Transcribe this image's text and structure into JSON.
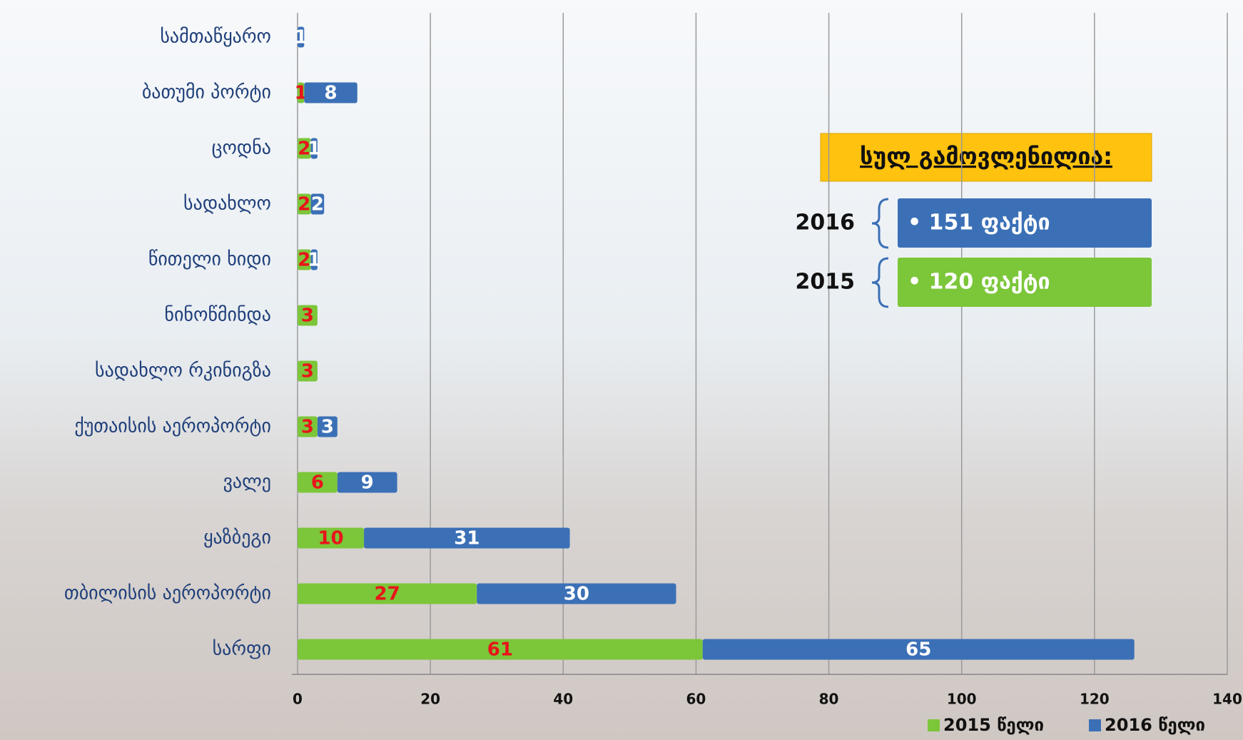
{
  "chart_data": {
    "type": "bar",
    "orientation": "horizontal",
    "stacked": true,
    "categories": [
      "სამთაწყარო",
      "ბათუმი პორტი",
      "ცოდნა",
      "სადახლო",
      "წითელი ხიდი",
      "ნინოწმინდა",
      "სადახლო რკინიგზა",
      "ქუთაისის აეროპორტი",
      "ვალე",
      "ყაზბეგი",
      "თბილისის აეროპორტი",
      "სარფი"
    ],
    "series": [
      {
        "name": "2015 წელი",
        "color": "#7cc63a",
        "label_color": "#e8141a",
        "values": [
          null,
          1,
          2,
          2,
          2,
          3,
          3,
          3,
          6,
          10,
          27,
          61
        ]
      },
      {
        "name": "2016 წელი",
        "color": "#3b70b6",
        "label_color": "#ffffff",
        "values": [
          1,
          8,
          1,
          2,
          1,
          null,
          null,
          3,
          9,
          31,
          30,
          65
        ]
      }
    ],
    "xlim": [
      0,
      140
    ],
    "xticks": [
      0,
      20,
      40,
      60,
      80,
      100,
      120,
      140
    ],
    "grid": true,
    "legend": "bottom-right",
    "summary": {
      "title": "სულ გამოვლენილია:",
      "items": [
        {
          "year": "2016",
          "text": "• 151  ფაქტი",
          "color": "#3b70b6"
        },
        {
          "year": "2015",
          "text": "• 120  ფაქტი",
          "color": "#7cc63a"
        }
      ]
    }
  }
}
